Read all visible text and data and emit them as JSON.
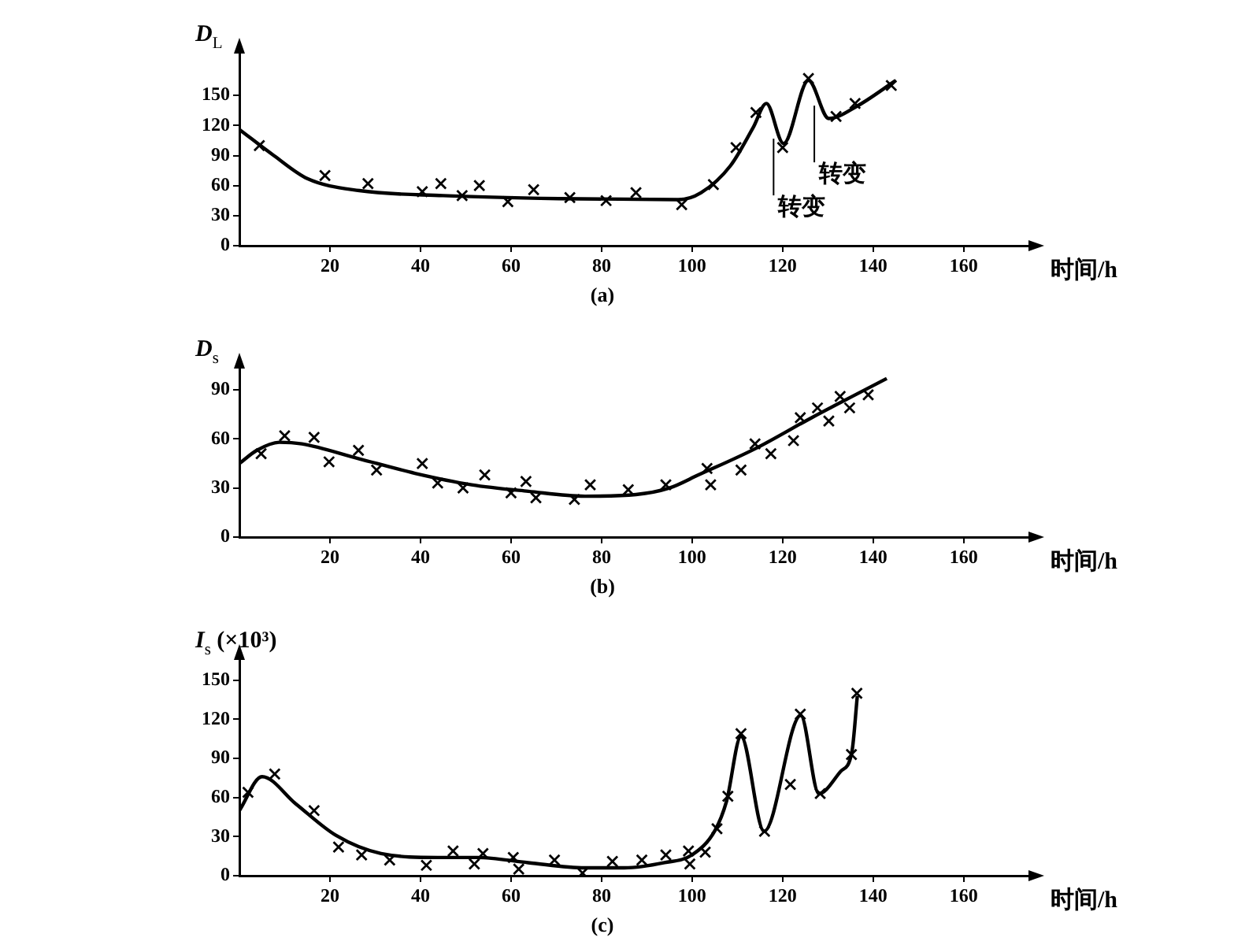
{
  "chart_data": [
    {
      "type": "scatter",
      "title": "(a)",
      "ylabel": "D$_{L}$",
      "xlabel": "时间/h",
      "xlim": [
        0,
        175
      ],
      "xticks": [
        20,
        40,
        60,
        80,
        100,
        120,
        140,
        160
      ],
      "ylim": [
        0,
        195
      ],
      "yticks": [
        0,
        30,
        60,
        90,
        120,
        150
      ],
      "grid": false,
      "legend": false,
      "marker": "cross",
      "annotations": [
        {
          "text": "转变",
          "x": 118,
          "y": 110
        },
        {
          "text": "转变",
          "x": 127,
          "y": 143
        }
      ],
      "series": [
        {
          "type": "scatter",
          "color": "#000000",
          "x": [
            4.4,
            18.9,
            28.4,
            40.4,
            44.5,
            49.2,
            53,
            59.3,
            65,
            73,
            81,
            87.6,
            97.7,
            104.7,
            109.7,
            114.1,
            120,
            125.7,
            131.8,
            136,
            144
          ],
          "values": [
            100,
            70,
            62,
            54,
            62,
            50,
            60,
            44,
            56,
            48,
            45,
            53,
            41,
            61,
            98,
            133,
            98,
            167,
            129,
            142,
            160
          ]
        },
        {
          "type": "line",
          "marker": "none",
          "color": "#000000",
          "x": [
            0,
            7.6,
            15,
            26.5,
            45,
            70.6,
            97,
            102,
            108.5,
            113.5,
            116.4,
            120.2,
            125.7,
            130.2,
            136.3,
            145
          ],
          "values": [
            116,
            90,
            67,
            55,
            50,
            47,
            46,
            53,
            80,
            118,
            142,
            102,
            165,
            127,
            139,
            165
          ]
        }
      ]
    },
    {
      "type": "scatter",
      "title": "(b)",
      "ylabel": "D$_{s}$",
      "xlabel": "时间/h",
      "xlim": [
        0,
        175
      ],
      "xticks": [
        20,
        40,
        60,
        80,
        100,
        120,
        140,
        160
      ],
      "ylim": [
        0,
        105
      ],
      "yticks": [
        0,
        30,
        60,
        90
      ],
      "grid": false,
      "legend": false,
      "marker": "cross",
      "series": [
        {
          "type": "scatter",
          "color": "#000000",
          "x": [
            4.8,
            10,
            16.5,
            19.8,
            26.3,
            30.3,
            40.4,
            43.8,
            49.4,
            54.2,
            60,
            63.3,
            65.5,
            74,
            77.5,
            85.9,
            94.2,
            103.3,
            104.1,
            110.8,
            113.9,
            117.4,
            122.4,
            123.9,
            127.7,
            130.2,
            132.7,
            134.8,
            138.9
          ],
          "values": [
            51,
            62,
            61,
            46,
            53,
            41,
            45,
            33,
            30,
            38,
            27,
            34,
            24,
            23,
            32,
            29,
            32,
            42,
            32,
            41,
            57,
            51,
            59,
            73,
            79,
            71,
            86,
            79,
            87
          ]
        },
        {
          "type": "line",
          "marker": "none",
          "color": "#000000",
          "x": [
            0,
            3.8,
            8.8,
            13.8,
            26.3,
            38.8,
            51.3,
            63.8,
            76.3,
            87.6,
            95,
            101.4,
            113.9,
            126.4,
            143
          ],
          "values": [
            45,
            53,
            58,
            57,
            48,
            39,
            32,
            28,
            25,
            26,
            30,
            38,
            54,
            73,
            97
          ]
        }
      ]
    },
    {
      "type": "scatter",
      "title": "(c)",
      "ylabel": "I$_{s}$ (×10³)",
      "xlabel": "时间/h",
      "xlim": [
        0,
        175
      ],
      "xticks": [
        20,
        40,
        60,
        80,
        100,
        120,
        140,
        160
      ],
      "ylim": [
        0,
        168
      ],
      "yticks": [
        0,
        30,
        60,
        90,
        120,
        150
      ],
      "grid": false,
      "legend": false,
      "marker": "cross",
      "series": [
        {
          "type": "scatter",
          "color": "#000000",
          "x": [
            1.9,
            7.8,
            16.5,
            21.9,
            27,
            33.2,
            41.3,
            47.2,
            51.9,
            53.8,
            60.5,
            61.7,
            69.6,
            75.8,
            82.4,
            88.9,
            94.2,
            99.2,
            99.5,
            102.9,
            105.5,
            107.9,
            110.8,
            116,
            121.7,
            123.9,
            128.3,
            135.2,
            136.4
          ],
          "values": [
            64,
            78,
            50,
            22,
            16,
            12,
            8,
            19,
            9,
            17,
            14,
            5,
            12,
            2,
            11,
            12,
            16,
            19,
            9,
            18,
            36,
            61,
            109,
            34,
            70,
            124,
            63,
            93,
            140
          ]
        },
        {
          "type": "line",
          "marker": "none",
          "color": "#000000",
          "x": [
            0,
            5,
            12.5,
            21.3,
            31.3,
            43.8,
            52.6,
            63.8,
            76.3,
            85,
            93.9,
            100,
            105.1,
            107.6,
            110.8,
            115.9,
            124,
            128,
            132.8,
            135.3,
            136.5
          ],
          "values": [
            50,
            76,
            55,
            31,
            17,
            14,
            14,
            10,
            6,
            6,
            10,
            16,
            35,
            57,
            107,
            34,
            123,
            63,
            80,
            95,
            138
          ]
        }
      ]
    }
  ]
}
